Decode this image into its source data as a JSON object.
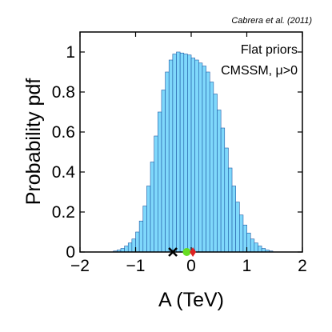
{
  "chart_data": {
    "type": "bar",
    "title": "",
    "xlabel": "A (TeV)",
    "ylabel": "Probability pdf",
    "xlim": [
      -2,
      2
    ],
    "ylim": [
      0,
      1.1
    ],
    "x_ticks": [
      "−2",
      "−1",
      "0",
      "1",
      "2"
    ],
    "y_ticks": [
      "0",
      "0.2",
      "0.4",
      "0.6",
      "0.8",
      "1"
    ],
    "x_tick_values": [
      -2,
      -1,
      0,
      1,
      2
    ],
    "y_tick_values": [
      0,
      0.2,
      0.4,
      0.6,
      0.8,
      1
    ],
    "grid": false,
    "bar_color": "#7fd8fb",
    "bar_edge_color": "#1f5aa6",
    "bin_width": 0.0667,
    "bins_start": -1.4,
    "values": [
      0.005,
      0.01,
      0.018,
      0.03,
      0.045,
      0.065,
      0.1,
      0.155,
      0.23,
      0.33,
      0.45,
      0.58,
      0.7,
      0.81,
      0.9,
      0.96,
      0.99,
      1.0,
      0.995,
      0.99,
      0.985,
      0.97,
      0.96,
      0.945,
      0.93,
      0.9,
      0.85,
      0.79,
      0.71,
      0.62,
      0.52,
      0.42,
      0.33,
      0.25,
      0.185,
      0.135,
      0.095,
      0.065,
      0.045,
      0.03,
      0.018,
      0.01,
      0.005
    ],
    "markers": [
      {
        "symbol": "x",
        "x": -0.33,
        "y": 0,
        "color": "#000000"
      },
      {
        "symbol": "circle",
        "x": -0.08,
        "y": 0,
        "color": "#66dd22"
      },
      {
        "symbol": "diamond",
        "x": 0.03,
        "y": 0,
        "color": "#dd2222"
      }
    ],
    "annotations": {
      "priors": "Flat priors",
      "model": "CMSSM, μ>0",
      "citation": "Cabrera et al. (2011)"
    }
  }
}
